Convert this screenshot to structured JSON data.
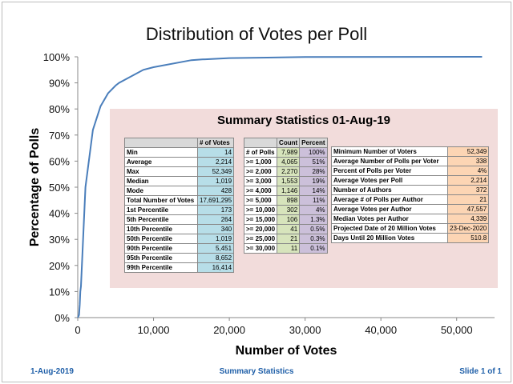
{
  "chart_data": {
    "type": "line",
    "title": "Distribution of Votes per Poll",
    "xlabel": "Number of Votes",
    "ylabel": "Percentage of Polls",
    "xlim": [
      0,
      55000
    ],
    "ylim": [
      0,
      100
    ],
    "xticks": [
      "0",
      "10,000",
      "20,000",
      "30,000",
      "40,000",
      "50,000"
    ],
    "yticks": [
      "0%",
      "10%",
      "20%",
      "30%",
      "40%",
      "50%",
      "60%",
      "70%",
      "80%",
      "90%",
      "100%"
    ],
    "x": [
      14,
      173,
      264,
      340,
      428,
      1019,
      2000,
      3000,
      4000,
      5000,
      5451,
      8652,
      10000,
      15000,
      16414,
      20000,
      25000,
      30000,
      52349
    ],
    "y": [
      0,
      1,
      5,
      10,
      12,
      50,
      72,
      81,
      86,
      89,
      90,
      95,
      96,
      98.7,
      99,
      99.5,
      99.7,
      99.9,
      100
    ],
    "color": "#4a7ebb",
    "grid": false
  },
  "summary": {
    "title": "Summary Statistics 01-Aug-19",
    "votes_header": "# of Votes",
    "votes": [
      [
        "Min",
        "14"
      ],
      [
        "Average",
        "2,214"
      ],
      [
        "Max",
        "52,349"
      ],
      [
        "Median",
        "1,019"
      ],
      [
        "Mode",
        "428"
      ],
      [
        "Total Number of Votes",
        "17,691,295"
      ],
      [
        "1st Percentile",
        "173"
      ],
      [
        "5th Percentile",
        "264"
      ],
      [
        "10th Percentile",
        "340"
      ],
      [
        "50th Percentile",
        "1,019"
      ],
      [
        "90th Percentile",
        "5,451"
      ],
      [
        "95th Percentile",
        "8,652"
      ],
      [
        "99th Percentile",
        "16,414"
      ]
    ],
    "polls_headers": [
      "Count",
      "Percent"
    ],
    "polls": [
      [
        "# of Polls",
        "7,989",
        "100%"
      ],
      [
        ">= 1,000",
        "4,065",
        "51%"
      ],
      [
        ">= 2,000",
        "2,270",
        "28%"
      ],
      [
        ">= 3,000",
        "1,553",
        "19%"
      ],
      [
        ">= 4,000",
        "1,146",
        "14%"
      ],
      [
        ">= 5,000",
        "898",
        "11%"
      ],
      [
        ">= 10,000",
        "302",
        "4%"
      ],
      [
        ">= 15,000",
        "106",
        "1.3%"
      ],
      [
        ">= 20,000",
        "41",
        "0.5%"
      ],
      [
        ">= 25,000",
        "21",
        "0.3%"
      ],
      [
        ">= 30,000",
        "11",
        "0.1%"
      ]
    ],
    "other": [
      [
        "Minimum Number of Voters",
        "52,349"
      ],
      [
        "Average Number of Polls per Voter",
        "338"
      ],
      [
        "Percent of Polls per Voter",
        "4%"
      ],
      [
        "Average Votes per Poll",
        "2,214"
      ],
      [
        "Number of Authors",
        "372"
      ],
      [
        "Average # of Polls per Author",
        "21"
      ],
      [
        "Average Votes per Author",
        "47,557"
      ],
      [
        "Median Votes per Author",
        "4,339"
      ],
      [
        "Projected Date of 20 Million Votes",
        "23-Dec-2020"
      ],
      [
        "Days Until 20 Million Votes",
        "510.8"
      ]
    ]
  },
  "footer": {
    "date": "1-Aug-2019",
    "center": "Summary Statistics",
    "slide": "Slide 1 of 1"
  }
}
